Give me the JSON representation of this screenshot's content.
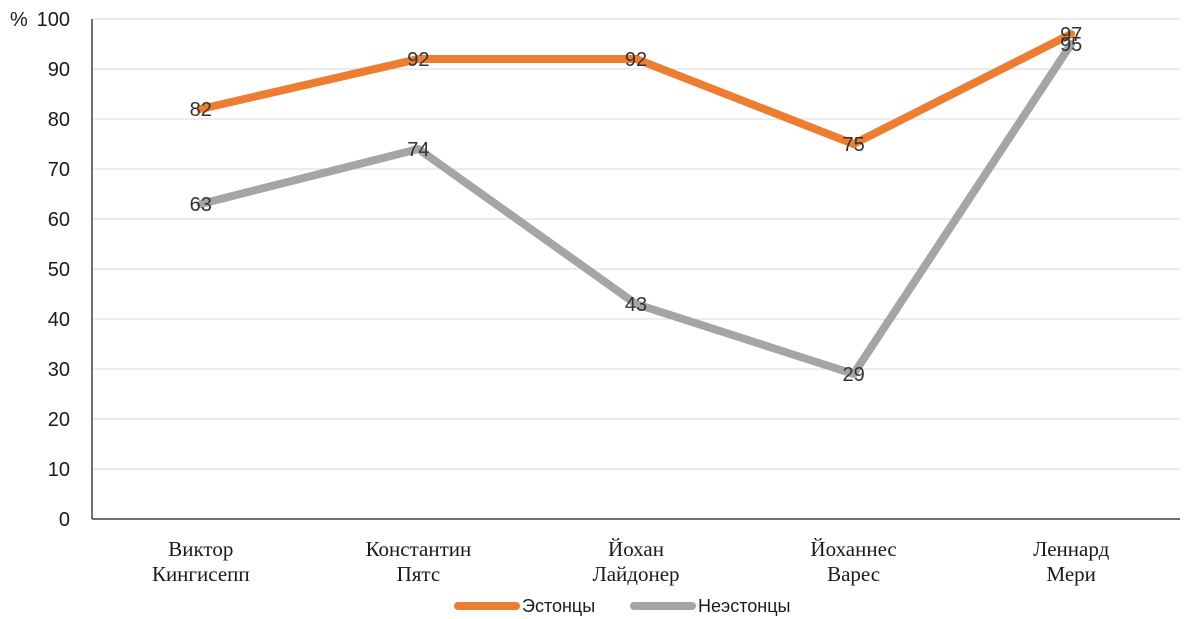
{
  "chart_data": {
    "type": "line",
    "title": "",
    "xlabel": "",
    "ylabel": "%",
    "ylim": [
      0,
      100
    ],
    "yticks": [
      0,
      10,
      20,
      30,
      40,
      50,
      60,
      70,
      80,
      90,
      100
    ],
    "grid": true,
    "legend_position": "bottom",
    "categories": [
      [
        "Виктор",
        "Кингисепп"
      ],
      [
        "Константин",
        "Пятс"
      ],
      [
        "Йохан",
        "Лайдонер"
      ],
      [
        "Йоханнес",
        "Варес"
      ],
      [
        "Леннард",
        "Мери"
      ]
    ],
    "series": [
      {
        "name": "Эстонцы",
        "color": "#ed7d31",
        "values": [
          82,
          92,
          92,
          75,
          97
        ]
      },
      {
        "name": "Неэстонцы",
        "color": "#a5a5a5",
        "values": [
          63,
          74,
          43,
          29,
          95
        ]
      }
    ]
  }
}
